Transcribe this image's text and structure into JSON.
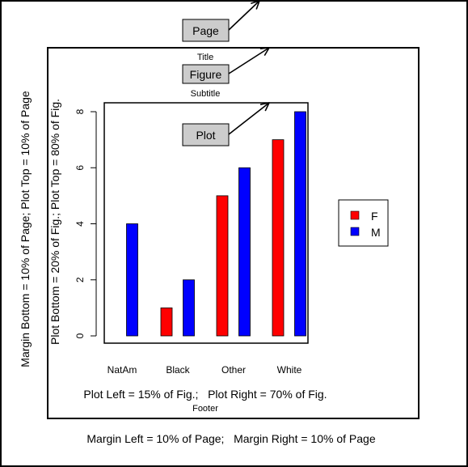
{
  "page_label": "Page",
  "figure_label": "Figure",
  "plot_label": "Plot",
  "title": "Title",
  "subtitle": "Subtitle",
  "footer": "Footer",
  "vertical_outer": "Margin Bottom = 10% of Page;    Plot Top = 10% of Page",
  "vertical_inner": "Plot Bottom = 20% of Fig.;   Plot Top = 80% of Fig.",
  "plot_lr_text": "Plot Left = 15% of Fig.;   Plot Right = 70% of Fig.",
  "margin_lr_text": "Margin Left = 10% of Page;   Margin Right = 10% of Page",
  "colors": {
    "F": "#ff0000",
    "M": "#0000ff",
    "callout_fill": "#cccccc"
  },
  "chart_data": {
    "type": "bar",
    "categories": [
      "NatAm",
      "Black",
      "Other",
      "White"
    ],
    "series": [
      {
        "name": "F",
        "values": [
          0,
          1,
          5,
          7
        ]
      },
      {
        "name": "M",
        "values": [
          4,
          2,
          6,
          8
        ]
      }
    ],
    "yticks": [
      0,
      2,
      4,
      6,
      8
    ],
    "ylim": [
      0,
      8
    ],
    "legend": {
      "position": "right",
      "entries": [
        "F",
        "M"
      ]
    },
    "grid": false
  }
}
